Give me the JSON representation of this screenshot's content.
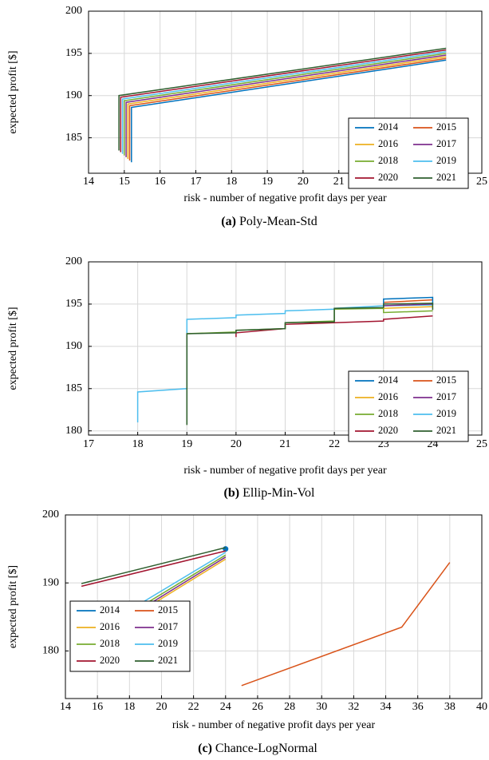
{
  "palette": {
    "2014": "#0072BD",
    "2015": "#D95319",
    "2016": "#EDB120",
    "2017": "#7E2F8E",
    "2018": "#77AC30",
    "2019": "#4DBEEE",
    "2020": "#A2142F",
    "2021": "#2F5F2F"
  },
  "chart_data": [
    {
      "type": "line",
      "caption_label": "(a)",
      "caption_text": "Poly-Mean-Std",
      "xlabel": "risk - number of negative profit days per year",
      "ylabel": "expected profit [$]",
      "xlim": [
        14,
        25
      ],
      "ylim": [
        180.8,
        200
      ],
      "xticks": [
        14,
        15,
        16,
        17,
        18,
        19,
        20,
        21,
        22,
        23,
        24,
        25
      ],
      "yticks": [
        185,
        190,
        195,
        200
      ],
      "grid": true,
      "legend": "bottom-right",
      "series": [
        {
          "name": "2021",
          "x": [
            14.85,
            14.85,
            24
          ],
          "y": [
            183.5,
            190.0,
            195.6
          ]
        },
        {
          "name": "2020",
          "x": [
            14.9,
            14.9,
            24
          ],
          "y": [
            183.3,
            189.8,
            195.4
          ]
        },
        {
          "name": "2019",
          "x": [
            14.95,
            14.95,
            24
          ],
          "y": [
            183.1,
            189.6,
            195.2
          ]
        },
        {
          "name": "2018",
          "x": [
            15.0,
            15.0,
            24
          ],
          "y": [
            182.9,
            189.4,
            195.0
          ]
        },
        {
          "name": "2017",
          "x": [
            15.05,
            15.05,
            24
          ],
          "y": [
            182.7,
            189.2,
            194.8
          ]
        },
        {
          "name": "2016",
          "x": [
            15.1,
            15.1,
            24
          ],
          "y": [
            182.5,
            189.0,
            194.6
          ]
        },
        {
          "name": "2015",
          "x": [
            15.15,
            15.15,
            24
          ],
          "y": [
            182.3,
            188.8,
            194.4
          ]
        },
        {
          "name": "2014",
          "x": [
            15.2,
            15.2,
            24
          ],
          "y": [
            182.1,
            188.6,
            194.2
          ]
        }
      ]
    },
    {
      "type": "line",
      "caption_label": "(b)",
      "caption_text": "Ellip-Min-Vol",
      "xlabel": "risk - number of negative profit days per year",
      "ylabel": "expected profit [$]",
      "xlim": [
        17,
        25
      ],
      "ylim": [
        179.5,
        200
      ],
      "xticks": [
        17,
        18,
        19,
        20,
        21,
        22,
        23,
        24,
        25
      ],
      "yticks": [
        180,
        185,
        190,
        195,
        200
      ],
      "grid": true,
      "legend": "bottom-right",
      "series": [
        {
          "name": "2019",
          "x": [
            18,
            18,
            19,
            19,
            20,
            20,
            21,
            21,
            22,
            22,
            23,
            24
          ],
          "y": [
            181.0,
            184.6,
            185.0,
            193.2,
            193.4,
            193.7,
            193.9,
            194.2,
            194.4,
            194.5,
            194.8,
            194.9
          ]
        },
        {
          "name": "2020",
          "x": [
            20,
            20,
            21,
            21,
            22,
            22,
            23,
            23,
            24
          ],
          "y": [
            191.1,
            191.6,
            192.1,
            192.6,
            192.8,
            192.8,
            193.0,
            193.2,
            193.6
          ]
        },
        {
          "name": "2018",
          "x": [
            19,
            19,
            20,
            20,
            21,
            21,
            22,
            22,
            23,
            23,
            24
          ],
          "y": [
            180.7,
            191.5,
            191.7,
            191.9,
            192.1,
            192.8,
            193.0,
            194.4,
            194.5,
            194.0,
            194.2
          ]
        },
        {
          "name": "2016",
          "x": [
            23,
            24
          ],
          "y": [
            194.5,
            194.7
          ]
        },
        {
          "name": "2017",
          "x": [
            23,
            24
          ],
          "y": [
            194.8,
            195.0
          ]
        },
        {
          "name": "2015",
          "x": [
            23,
            24
          ],
          "y": [
            195.2,
            195.5
          ]
        },
        {
          "name": "2014",
          "x": [
            23,
            23,
            24,
            24
          ],
          "y": [
            194.6,
            195.6,
            195.8,
            194.9
          ]
        },
        {
          "name": "2021",
          "x": [
            19,
            19,
            20,
            20,
            21,
            21,
            22,
            22,
            23,
            23,
            24,
            24
          ],
          "y": [
            180.7,
            191.5,
            191.6,
            191.9,
            192.1,
            192.8,
            192.9,
            194.5,
            194.6,
            195.0,
            195.1,
            194.3
          ]
        }
      ]
    },
    {
      "type": "line",
      "caption_label": "(c)",
      "caption_text": "Chance-LogNormal",
      "xlabel": "risk - number of negative profit days per year",
      "ylabel": "expected profit [$]",
      "xlim": [
        14,
        40
      ],
      "ylim": [
        173,
        200
      ],
      "xticks": [
        14,
        16,
        18,
        20,
        22,
        24,
        26,
        28,
        30,
        32,
        34,
        36,
        38,
        40
      ],
      "yticks": [
        180,
        190,
        200
      ],
      "grid": true,
      "legend": "bottom-left",
      "series": [
        {
          "name": "2014",
          "x": [
            24
          ],
          "y": [
            195.0
          ],
          "marker": "o"
        },
        {
          "name": "2015",
          "x": [
            25,
            35,
            38
          ],
          "y": [
            174.9,
            183.5,
            193.0
          ]
        },
        {
          "name": "2016",
          "x": [
            18,
            24
          ],
          "y": [
            184.8,
            193.5
          ]
        },
        {
          "name": "2017",
          "x": [
            18,
            24
          ],
          "y": [
            185.1,
            193.8
          ]
        },
        {
          "name": "2018",
          "x": [
            18,
            24
          ],
          "y": [
            185.5,
            194.1
          ]
        },
        {
          "name": "2019",
          "x": [
            18,
            24
          ],
          "y": [
            186.0,
            194.5
          ]
        },
        {
          "name": "2020",
          "x": [
            15,
            24
          ],
          "y": [
            189.5,
            194.7
          ]
        },
        {
          "name": "2021",
          "x": [
            15,
            24
          ],
          "y": [
            189.9,
            195.2
          ]
        }
      ]
    }
  ],
  "legend_order": [
    "2014",
    "2015",
    "2016",
    "2017",
    "2018",
    "2019",
    "2020",
    "2021"
  ]
}
